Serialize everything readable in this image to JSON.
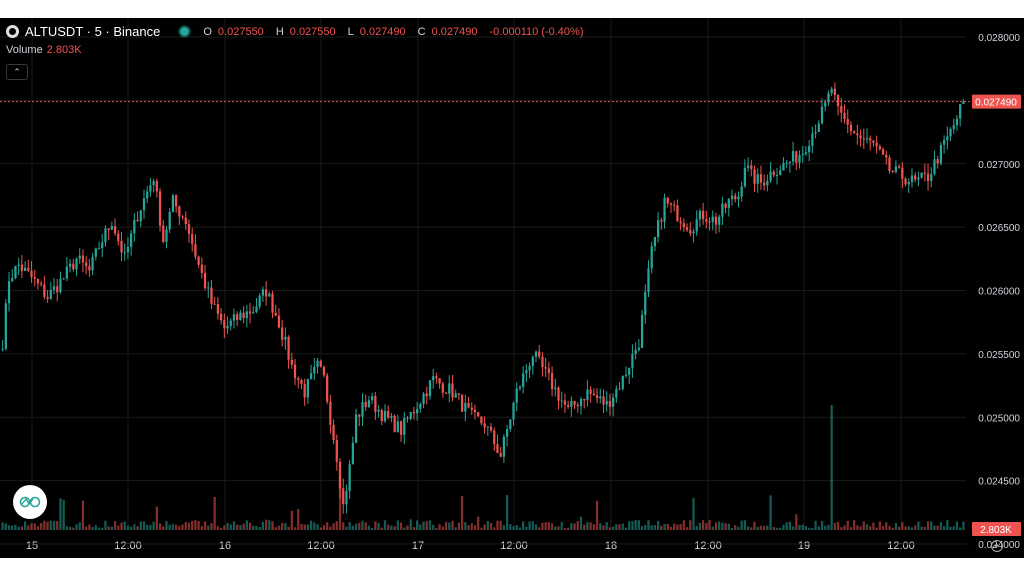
{
  "legend": {
    "symbol": "ALTUSDT · 5 · Binance",
    "open_key": "O",
    "open": "0.027550",
    "high_key": "H",
    "high": "0.027550",
    "low_key": "L",
    "low": "0.027490",
    "close_key": "C",
    "close": "0.027490",
    "change": "-0.000110 (-0.40%)"
  },
  "volume": {
    "label": "Volume",
    "value": "2.803K"
  },
  "colors": {
    "up": "#26a69a",
    "down": "#ef5350",
    "background": "#000000",
    "text": "#d1d4dc"
  },
  "chart_data": {
    "type": "candlestick",
    "x_tick_labels": [
      "15",
      "12:00",
      "16",
      "12:00",
      "17",
      "12:00",
      "18",
      "12:00",
      "19",
      "12:00"
    ],
    "y_tick_labels": [
      "0.028000",
      "0.027500",
      "0.027000",
      "0.026500",
      "0.026000",
      "0.025500",
      "0.025000",
      "0.024500",
      "0.024000"
    ],
    "ylim": [
      0.02389,
      0.02815
    ],
    "grid": true,
    "last_price": 0.02749,
    "last_price_label": "0.027490",
    "volume_label": "2.803K",
    "close_path": [
      [
        0,
        0.0256
      ],
      [
        2,
        0.0261
      ],
      [
        5,
        0.0262
      ],
      [
        9,
        0.0261
      ],
      [
        14,
        0.02595
      ],
      [
        19,
        0.0261
      ],
      [
        23,
        0.02625
      ],
      [
        27,
        0.02615
      ],
      [
        30,
        0.02635
      ],
      [
        34,
        0.02655
      ],
      [
        38,
        0.02625
      ],
      [
        42,
        0.0266
      ],
      [
        47,
        0.0269
      ],
      [
        50,
        0.0264
      ],
      [
        53,
        0.0267
      ],
      [
        57,
        0.02655
      ],
      [
        61,
        0.0262
      ],
      [
        65,
        0.0259
      ],
      [
        69,
        0.0257
      ],
      [
        74,
        0.0258
      ],
      [
        78,
        0.02585
      ],
      [
        82,
        0.026
      ],
      [
        86,
        0.02575
      ],
      [
        90,
        0.0254
      ],
      [
        94,
        0.0252
      ],
      [
        98,
        0.0254
      ],
      [
        100,
        0.0253
      ],
      [
        102,
        0.025
      ],
      [
        104,
        0.0247
      ],
      [
        106,
        0.0243
      ],
      [
        108,
        0.0246
      ],
      [
        110,
        0.025
      ],
      [
        114,
        0.02515
      ],
      [
        119,
        0.025
      ],
      [
        124,
        0.0249
      ],
      [
        129,
        0.0251
      ],
      [
        134,
        0.0253
      ],
      [
        140,
        0.0252
      ],
      [
        146,
        0.025
      ],
      [
        150,
        0.02495
      ],
      [
        155,
        0.0247
      ],
      [
        160,
        0.0252
      ],
      [
        165,
        0.0255
      ],
      [
        170,
        0.0253
      ],
      [
        176,
        0.02505
      ],
      [
        182,
        0.0252
      ],
      [
        188,
        0.0251
      ],
      [
        193,
        0.0253
      ],
      [
        198,
        0.0256
      ],
      [
        202,
        0.0263
      ],
      [
        206,
        0.0267
      ],
      [
        210,
        0.0266
      ],
      [
        214,
        0.0265
      ],
      [
        218,
        0.0266
      ],
      [
        222,
        0.02655
      ],
      [
        226,
        0.0267
      ],
      [
        229,
        0.02675
      ],
      [
        231,
        0.027
      ],
      [
        233,
        0.0269
      ],
      [
        236,
        0.02685
      ],
      [
        240,
        0.02695
      ],
      [
        244,
        0.027
      ],
      [
        249,
        0.0271
      ],
      [
        253,
        0.0273
      ],
      [
        256,
        0.02745
      ],
      [
        258,
        0.0276
      ],
      [
        260,
        0.0274
      ],
      [
        263,
        0.0273
      ],
      [
        267,
        0.0272
      ],
      [
        271,
        0.02715
      ],
      [
        276,
        0.02695
      ],
      [
        280,
        0.0269
      ],
      [
        284,
        0.02685
      ],
      [
        288,
        0.0269
      ],
      [
        292,
        0.0271
      ],
      [
        296,
        0.0273
      ],
      [
        299,
        0.02749
      ]
    ]
  }
}
